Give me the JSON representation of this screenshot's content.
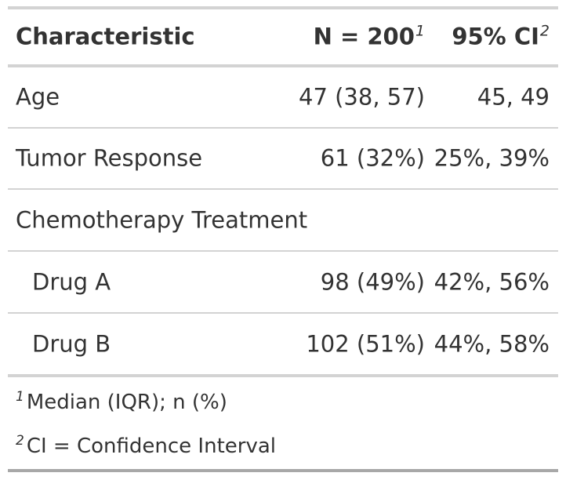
{
  "table": {
    "header": {
      "characteristic": "Characteristic",
      "n": "N = 200",
      "n_footnote": "1",
      "ci": "95% CI",
      "ci_footnote": "2"
    },
    "rows": [
      {
        "label": "Age",
        "n": "47 (38, 57)",
        "ci": "45, 49"
      },
      {
        "label": "Tumor Response",
        "n": "61 (32%)",
        "ci": "25%, 39%"
      },
      {
        "label": "Chemotherapy Treatment",
        "n": "",
        "ci": ""
      },
      {
        "label": "Drug A",
        "n": "98 (49%)",
        "ci": "42%, 56%"
      },
      {
        "label": "Drug B",
        "n": "102 (51%)",
        "ci": "44%, 58%"
      }
    ],
    "footnotes": [
      {
        "mark": "1",
        "text": "Median (IQR); n (%)"
      },
      {
        "mark": "2",
        "text": "CI = Confidence Interval"
      }
    ]
  }
}
